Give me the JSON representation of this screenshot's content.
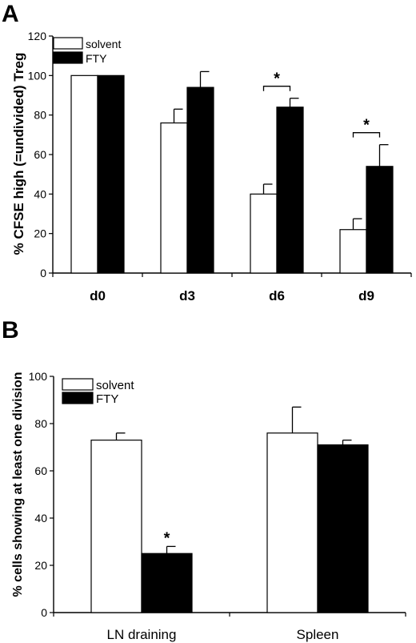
{
  "chart_data": [
    {
      "panel": "A",
      "type": "bar",
      "ylabel": "% CFSE high (=undivided) Treg",
      "categories": [
        "d0",
        "d3",
        "d6",
        "d9"
      ],
      "ylim": [
        0,
        120
      ],
      "yticks": [
        0,
        20,
        40,
        60,
        80,
        100,
        120
      ],
      "legend_position": "top-left",
      "series": [
        {
          "name": "solvent",
          "fill": "#ffffff",
          "values": [
            100,
            76,
            40,
            22
          ],
          "errors": [
            0,
            7,
            5,
            5.5
          ]
        },
        {
          "name": "FTY",
          "fill": "#000000",
          "values": [
            100,
            94,
            84,
            54
          ],
          "errors": [
            0,
            8,
            4.5,
            11
          ]
        }
      ],
      "significance": [
        {
          "category": "d6",
          "label": "*"
        },
        {
          "category": "d9",
          "label": "*"
        }
      ]
    },
    {
      "panel": "B",
      "type": "bar",
      "ylabel": "% cells showing at least one division",
      "categories": [
        "LN draining",
        "Spleen"
      ],
      "ylim": [
        0,
        100
      ],
      "yticks": [
        0,
        20,
        40,
        60,
        80,
        100
      ],
      "legend_position": "top-left",
      "series": [
        {
          "name": "solvent",
          "fill": "#ffffff",
          "values": [
            73,
            76
          ],
          "errors": [
            3,
            11
          ]
        },
        {
          "name": "FTY",
          "fill": "#000000",
          "values": [
            25,
            71
          ],
          "errors": [
            3,
            2
          ]
        }
      ],
      "significance": [
        {
          "category": "LN draining",
          "series": "FTY",
          "label": "*"
        }
      ]
    }
  ]
}
